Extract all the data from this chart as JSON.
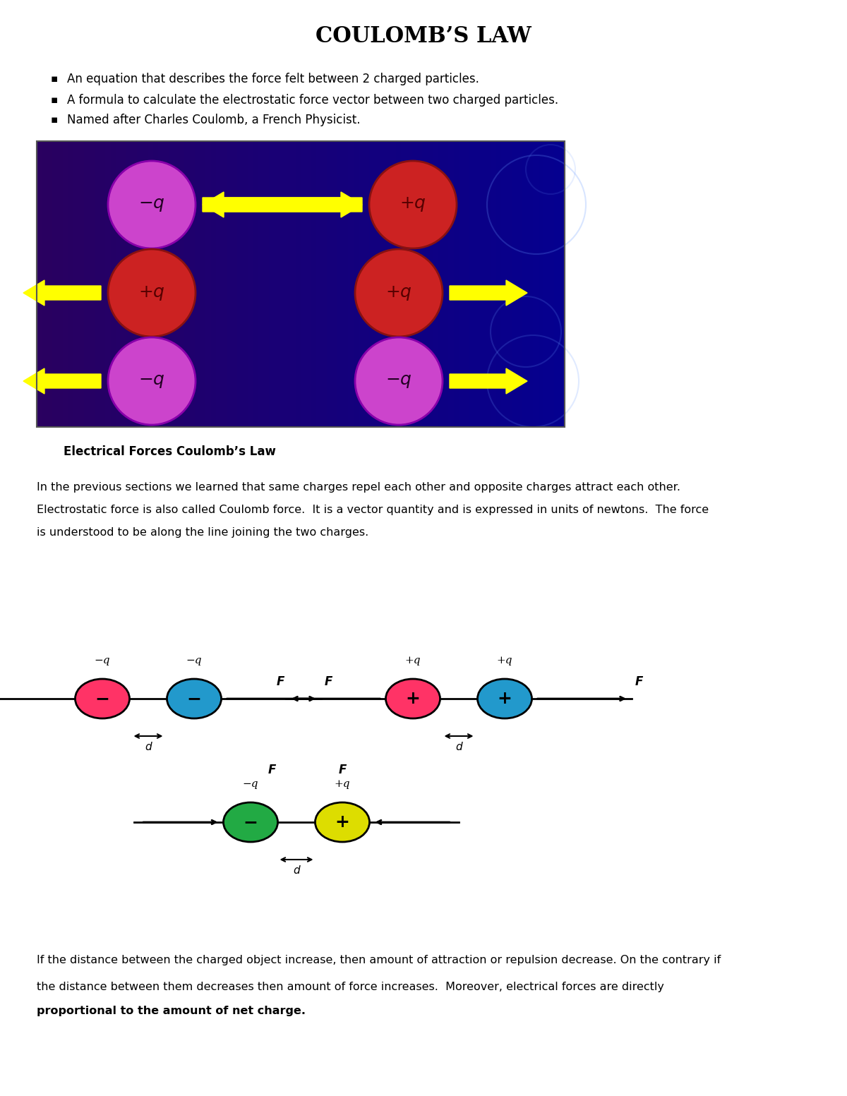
{
  "title": "COULOMB’S LAW",
  "bullet1": "An equation that describes the force felt between 2 charged particles.",
  "bullet2": "A formula to calculate the electrostatic force vector between two charged particles.",
  "bullet3": "Named after Charles Coulomb, a French Physicist.",
  "caption": "Electrical Forces Coulomb’s Law",
  "para1_line1": "In the previous sections we learned that same charges repel each other and opposite charges attract each other.",
  "para1_line2": "Electrostatic force is also called Coulomb force.  It is a vector quantity and is expressed in units of newtons.  The force",
  "para1_line3": "is understood to be along the line joining the two charges.",
  "para2_line1": "If the distance between the charged object increase, then amount of attraction or repulsion decrease. On the contrary if",
  "para2_line2": "the distance between them decreases then amount of force increases.  Moreover, electrical forces are directly",
  "para2_line3": "proportional to the amount of net charge.",
  "bg_color": "#ffffff",
  "img_bg_left": "#2a0060",
  "img_bg_right": "#0a0080",
  "arrow_color": "#ffff00",
  "purple_circle": "#cc44cc",
  "red_circle": "#cc2222",
  "pink_circle": "#ff3366",
  "cyan_circle": "#2299cc",
  "green_circle": "#22aa44",
  "yellow_circle": "#dddd00"
}
